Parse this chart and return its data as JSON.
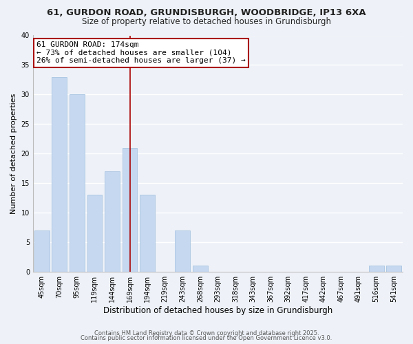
{
  "title": "61, GURDON ROAD, GRUNDISBURGH, WOODBRIDGE, IP13 6XA",
  "subtitle": "Size of property relative to detached houses in Grundisburgh",
  "xlabel": "Distribution of detached houses by size in Grundisburgh",
  "ylabel": "Number of detached properties",
  "categories": [
    "45sqm",
    "70sqm",
    "95sqm",
    "119sqm",
    "144sqm",
    "169sqm",
    "194sqm",
    "219sqm",
    "243sqm",
    "268sqm",
    "293sqm",
    "318sqm",
    "343sqm",
    "367sqm",
    "392sqm",
    "417sqm",
    "442sqm",
    "467sqm",
    "491sqm",
    "516sqm",
    "541sqm"
  ],
  "values": [
    7,
    33,
    30,
    13,
    17,
    21,
    13,
    0,
    7,
    1,
    0,
    0,
    0,
    0,
    0,
    0,
    0,
    0,
    0,
    1,
    1
  ],
  "bar_color": "#c5d8f0",
  "bar_edge_color": "#a8c4e0",
  "vline_x_index": 5,
  "vline_color": "#aa0000",
  "ylim": [
    0,
    40
  ],
  "annotation_line1": "61 GURDON ROAD: 174sqm",
  "annotation_line2": "← 73% of detached houses are smaller (104)",
  "annotation_line3": "26% of semi-detached houses are larger (37) →",
  "annotation_box_color": "#ffffff",
  "annotation_box_edge": "#aa0000",
  "footer1": "Contains HM Land Registry data © Crown copyright and database right 2025.",
  "footer2": "Contains public sector information licensed under the Open Government Licence v3.0.",
  "bg_color": "#eef2f8",
  "grid_color": "#ffffff",
  "title_fontsize": 9.5,
  "subtitle_fontsize": 8.5,
  "tick_fontsize": 7,
  "ylabel_fontsize": 8,
  "xlabel_fontsize": 8.5,
  "annotation_fontsize": 8,
  "footer_fontsize": 6
}
